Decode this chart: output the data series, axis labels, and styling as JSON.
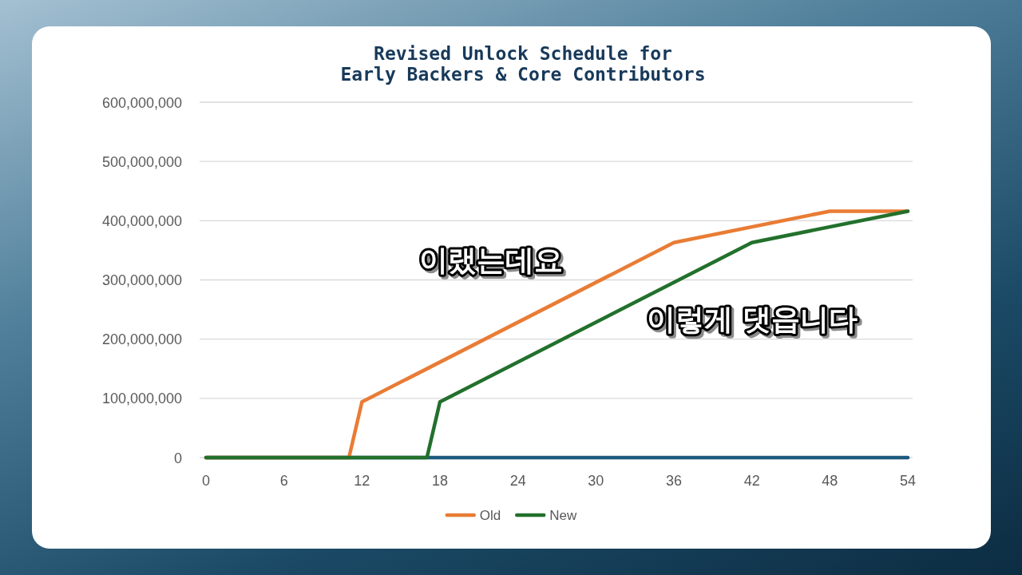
{
  "chart_data": {
    "type": "line",
    "title": "Revised Unlock Schedule for\nEarly Backers & Core Contributors",
    "xlim": [
      0,
      54
    ],
    "xticks": [
      0,
      6,
      12,
      18,
      24,
      30,
      36,
      42,
      48,
      54
    ],
    "ylim": [
      0,
      600000000
    ],
    "yticks": [
      0,
      {
        "value": 100000000,
        "label": "100,000,000"
      },
      {
        "value": 200000000,
        "label": "200,000,000"
      },
      {
        "value": 300000000,
        "label": "300,000,000"
      },
      {
        "value": 400000000,
        "label": "400,000,000"
      },
      {
        "value": 500000000,
        "label": "500,000,000"
      },
      {
        "value": 600000000,
        "label": "600,000,000"
      }
    ],
    "series": [
      {
        "color": "#1f5a7e",
        "x": [
          0,
          54
        ],
        "values": [
          0,
          0
        ]
      },
      {
        "name": "Old",
        "color": "#e97c35",
        "x": [
          0,
          11,
          12,
          36,
          48,
          54
        ],
        "values": [
          0,
          0,
          94000000,
          363000000,
          416000000,
          416000000
        ]
      },
      {
        "name": "New",
        "color": "#22702c",
        "x": [
          0,
          17,
          18,
          42,
          54
        ],
        "values": [
          0,
          0,
          94000000,
          363000000,
          416000000
        ]
      }
    ],
    "grid": "y",
    "legend": "bottom",
    "annotations": [
      "이랬는데요",
      "이렇게 댓읍니다"
    ]
  }
}
